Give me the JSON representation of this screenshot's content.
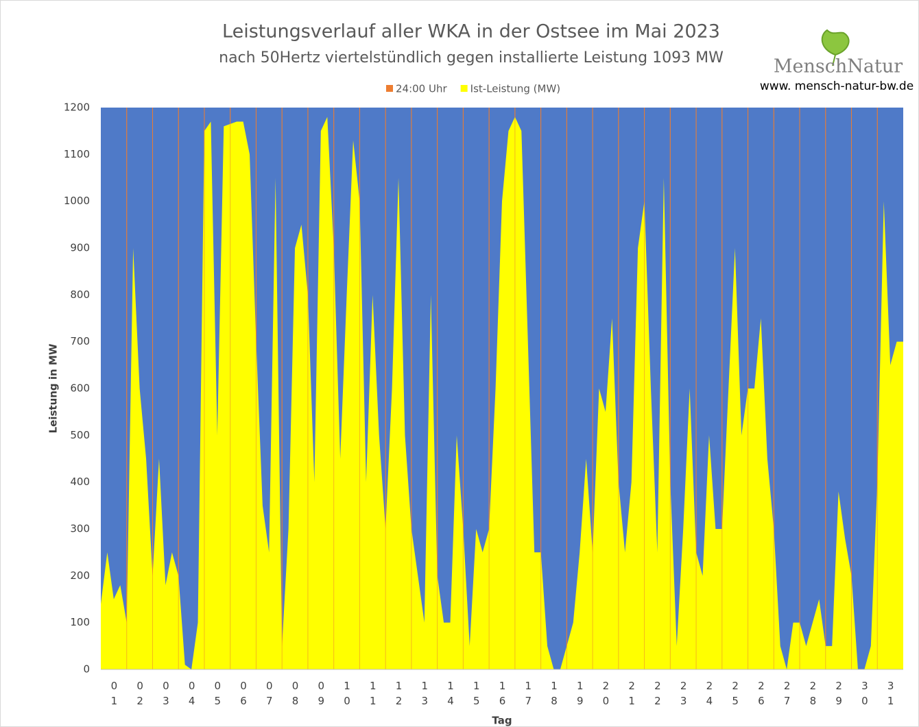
{
  "chart_data": {
    "type": "area",
    "title": "Leistungsverlauf aller WKA in der Ostsee im Mai 2023",
    "subtitle": "nach 50Hertz viertelstündlich gegen installierte Leistung 1093 MW",
    "y_label": "Leistung in MW",
    "x_label": "Tag",
    "logo": {
      "name": "MenschNatur",
      "url": "www. mensch-natur-bw.de"
    },
    "categories": [
      "01",
      "02",
      "03",
      "04",
      "05",
      "06",
      "07",
      "08",
      "09",
      "10",
      "11",
      "12",
      "13",
      "14",
      "15",
      "16",
      "17",
      "18",
      "19",
      "20",
      "21",
      "22",
      "23",
      "24",
      "25",
      "26",
      "27",
      "28",
      "29",
      "30",
      "31"
    ],
    "xlim": [
      0,
      31
    ],
    "ylim": [
      0,
      1200
    ],
    "yticks": [
      0,
      100,
      200,
      300,
      400,
      500,
      600,
      700,
      800,
      900,
      1000,
      1100,
      1200
    ],
    "background": "#4f7ac8",
    "series": [
      {
        "name": "24:00 Uhr",
        "color": "#ed7d31",
        "x": [
          1,
          2,
          3,
          4,
          5,
          6,
          7,
          8,
          9,
          10,
          11,
          12,
          13,
          14,
          15,
          16,
          17,
          18,
          19,
          20,
          21,
          22,
          23,
          24,
          25,
          26,
          27,
          28,
          29,
          30
        ],
        "values": [
          1200,
          1200,
          1200,
          1200,
          1200,
          1200,
          1200,
          1200,
          1200,
          1200,
          1200,
          1200,
          1200,
          1200,
          1200,
          1200,
          1200,
          1200,
          1200,
          1200,
          1200,
          1200,
          1200,
          1200,
          1200,
          1200,
          1200,
          1200,
          1200,
          1200
        ]
      },
      {
        "name": "Ist-Leistung (MW)",
        "color": "#ffff00",
        "x": [
          0,
          0.25,
          0.5,
          0.75,
          1,
          1.25,
          1.5,
          1.75,
          2,
          2.25,
          2.5,
          2.75,
          3,
          3.25,
          3.5,
          3.75,
          4,
          4.25,
          4.5,
          4.75,
          5,
          5.25,
          5.5,
          5.75,
          6,
          6.25,
          6.5,
          6.75,
          7,
          7.25,
          7.5,
          7.75,
          8,
          8.25,
          8.5,
          8.75,
          9,
          9.25,
          9.5,
          9.75,
          10,
          10.25,
          10.5,
          10.75,
          11,
          11.25,
          11.5,
          11.75,
          12,
          12.25,
          12.5,
          12.75,
          13,
          13.25,
          13.5,
          13.75,
          14,
          14.25,
          14.5,
          14.75,
          15,
          15.25,
          15.5,
          15.75,
          16,
          16.25,
          16.5,
          16.75,
          17,
          17.25,
          17.5,
          17.75,
          18,
          18.25,
          18.5,
          18.75,
          19,
          19.25,
          19.5,
          19.75,
          20,
          20.25,
          20.5,
          20.75,
          21,
          21.25,
          21.5,
          21.75,
          22,
          22.25,
          22.5,
          22.75,
          23,
          23.25,
          23.5,
          23.75,
          24,
          24.25,
          24.5,
          24.75,
          25,
          25.25,
          25.5,
          25.75,
          26,
          26.25,
          26.5,
          26.75,
          27,
          27.25,
          27.5,
          27.75,
          28,
          28.25,
          28.5,
          28.75,
          29,
          29.25,
          29.5,
          29.75,
          30,
          30.25,
          30.5,
          30.75,
          31
        ],
        "values": [
          140,
          250,
          150,
          180,
          100,
          900,
          600,
          450,
          200,
          450,
          180,
          250,
          200,
          10,
          0,
          100,
          1150,
          1170,
          500,
          1160,
          1165,
          1170,
          1170,
          1100,
          700,
          350,
          250,
          1050,
          50,
          300,
          900,
          950,
          800,
          400,
          1150,
          1180,
          900,
          450,
          800,
          1130,
          1000,
          400,
          800,
          500,
          300,
          600,
          1050,
          500,
          300,
          200,
          100,
          800,
          200,
          100,
          100,
          500,
          300,
          50,
          300,
          250,
          300,
          600,
          1000,
          1150,
          1180,
          1150,
          700,
          250,
          250,
          50,
          0,
          0,
          50,
          100,
          250,
          450,
          250,
          600,
          550,
          750,
          400,
          250,
          400,
          900,
          1000,
          600,
          250,
          1050,
          400,
          50,
          300,
          600,
          250,
          200,
          500,
          300,
          300,
          600,
          900,
          500,
          600,
          600,
          750,
          450,
          300,
          50,
          0,
          100,
          100,
          50,
          100,
          150,
          50,
          50,
          380,
          280,
          200,
          0,
          0,
          50,
          400,
          1000,
          650,
          700,
          700
        ]
      }
    ]
  }
}
